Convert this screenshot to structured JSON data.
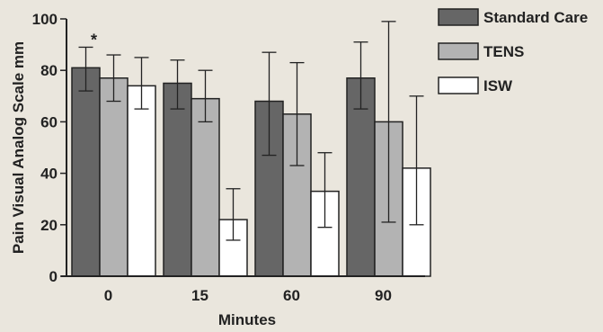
{
  "chart_data": {
    "type": "bar",
    "xlabel": "Minutes",
    "ylabel": "Pain Visual Analog Scale mm",
    "ylim": [
      0,
      100
    ],
    "yticks": [
      0,
      20,
      40,
      60,
      80,
      100
    ],
    "categories": [
      "0",
      "15",
      "60",
      "90"
    ],
    "series": [
      {
        "name": "Standard Care",
        "color": "#666666",
        "values": [
          81,
          75,
          68,
          77
        ],
        "error_low": [
          72,
          65,
          47,
          65
        ],
        "error_high": [
          89,
          84,
          87,
          91
        ]
      },
      {
        "name": "TENS",
        "color": "#b3b3b3",
        "values": [
          77,
          69,
          63,
          60
        ],
        "error_low": [
          68,
          60,
          43,
          21
        ],
        "error_high": [
          86,
          80,
          83,
          99
        ]
      },
      {
        "name": "ISW",
        "color": "#ffffff",
        "values": [
          74,
          22,
          33,
          42
        ],
        "error_low": [
          65,
          14,
          19,
          20
        ],
        "error_high": [
          85,
          34,
          48,
          70
        ]
      }
    ],
    "annotations": [
      "*"
    ],
    "legend_position": "top-right",
    "grid": false
  }
}
